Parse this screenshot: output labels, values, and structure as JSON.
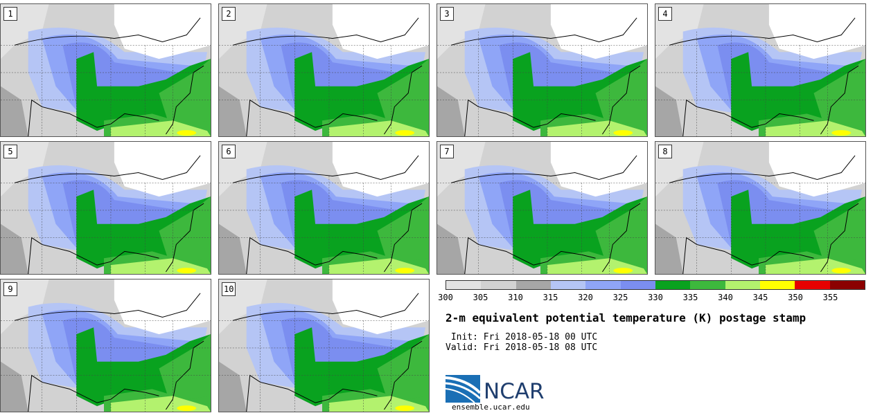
{
  "title": "2-m equivalent potential temperature (K) postage stamp",
  "init_line": " Init: Fri 2018-05-18 00 UTC",
  "valid_line": "Valid: Fri 2018-05-18 08 UTC",
  "logo_text": "NCAR",
  "site": "ensemble.ucar.edu",
  "members": [
    "1",
    "2",
    "3",
    "4",
    "5",
    "6",
    "7",
    "8",
    "9",
    "10"
  ],
  "colors": {
    "water": "#ffffff",
    "outline": "#000000",
    "state_lines": "#444444"
  },
  "chart_data": {
    "type": "heatmap",
    "variable": "2-m equivalent potential temperature",
    "units": "K",
    "levels": [
      300,
      305,
      310,
      315,
      320,
      325,
      330,
      335,
      340,
      345,
      350,
      355
    ],
    "level_labels": [
      "300",
      "305",
      "310",
      "315",
      "320",
      "325",
      "330",
      "335",
      "340",
      "345",
      "350",
      "355"
    ],
    "bin_colors": [
      "#e3e3e3",
      "#d2d2d2",
      "#a6a6a6",
      "#b5c5f5",
      "#8fa5f7",
      "#7b8ef0",
      "#09a21f",
      "#3db83d",
      "#b3f26e",
      "#ffff00",
      "#e60000",
      "#8b0000"
    ]
  }
}
